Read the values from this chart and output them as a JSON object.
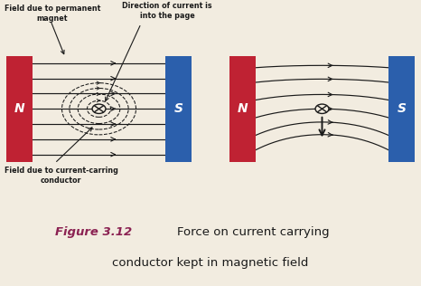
{
  "background_color": "#f2ece0",
  "magnet_red": "#bf2233",
  "magnet_blue": "#2b5fac",
  "magnet_text_color": "white",
  "line_color": "#1a1a1a",
  "figure_label_color": "#8b2252",
  "figure_label": "Figure 3.12",
  "figure_text": "Force on current carrying\nconductor kept in magnetic field",
  "label1": "Field due to permanent\nmagnet",
  "label2": "Direction of current is\ninto the page",
  "label3": "Field due to current-carring\nconductor",
  "N_label": "N",
  "S_label": "S",
  "fig_width": 4.66,
  "fig_height": 3.16,
  "dpi": 100
}
